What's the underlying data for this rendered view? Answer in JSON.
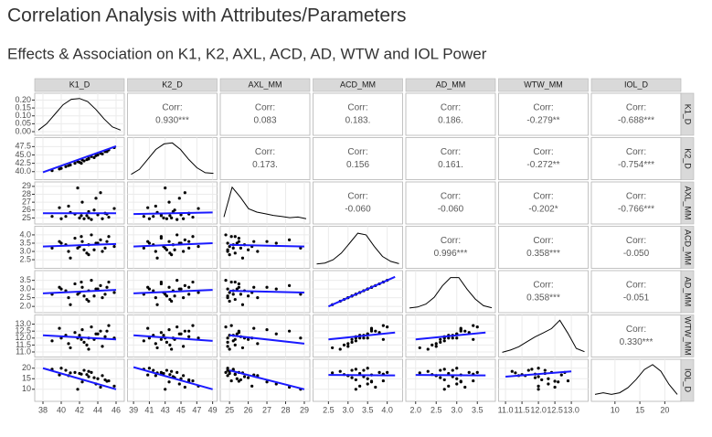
{
  "chart_data": {
    "type": "pairs",
    "title": "Correlation Analysis with Attributes/Parameters",
    "subtitle": "Effects & Association on K1, K2, AXL, ACD, AD, WTW and IOL Power",
    "corr_label": "Corr:",
    "point_color": "#000000",
    "fit_color": "#1a1aff",
    "density_color": "#000000",
    "grid": true,
    "density_ylim": [
      0,
      0.22
    ],
    "density_yticks": [
      {
        "value": 0,
        "label": "0.00"
      },
      0.05,
      {
        "value": 0.1,
        "label": "0.10"
      },
      0.15,
      {
        "value": 0.2,
        "label": "0.20"
      }
    ],
    "variables": [
      {
        "name": "K1_D",
        "lim": [
          37.5,
          46.5
        ],
        "xticks": [
          38,
          40,
          42,
          44,
          46
        ],
        "yticks": [],
        "density": [
          0.01,
          0.05,
          0.11,
          0.17,
          0.205,
          0.21,
          0.19,
          0.14,
          0.08,
          0.03,
          0.01
        ]
      },
      {
        "name": "K2_D",
        "lim": [
          38.7,
          49.1
        ],
        "xticks": [
          39,
          41,
          43,
          45,
          47,
          49
        ],
        "yticks": [
          {
            "value": 40,
            "label": "40.0"
          },
          42.5,
          {
            "value": 45,
            "label": "45.0"
          },
          47.5
        ],
        "density": [
          0.05,
          0.2,
          0.5,
          0.8,
          0.97,
          1.0,
          0.8,
          0.5,
          0.25,
          0.1,
          0.08
        ]
      },
      {
        "name": "AXL_MM",
        "lim": [
          24.7,
          29.1
        ],
        "xticks": [
          25,
          26,
          27,
          28,
          29
        ],
        "yticks": [
          25,
          26,
          27,
          28,
          29
        ],
        "density": [
          0.1,
          1.0,
          0.7,
          0.35,
          0.25,
          0.2,
          0.15,
          0.12,
          0.08,
          0.1,
          0.05
        ]
      },
      {
        "name": "ACD_MM",
        "lim": [
          2.2,
          4.3
        ],
        "xticks": [
          2.5,
          {
            "value": 3,
            "label": "3.0"
          },
          3.5,
          {
            "value": 4,
            "label": "4.0"
          }
        ],
        "yticks": [
          2.5,
          {
            "value": 3,
            "label": "3.0"
          },
          3.5,
          {
            "value": 4,
            "label": "4.0"
          }
        ],
        "density": [
          0.02,
          0.05,
          0.15,
          0.35,
          0.65,
          0.95,
          0.9,
          0.55,
          0.25,
          0.1,
          0.03
        ]
      },
      {
        "name": "AD_MM",
        "lim": [
          1.85,
          3.85
        ],
        "xticks": [
          {
            "value": 2,
            "label": "2.0"
          },
          2.5,
          {
            "value": 3,
            "label": "3.0"
          },
          3.5
        ],
        "yticks": [
          {
            "value": 2,
            "label": "2.0"
          },
          2.5,
          {
            "value": 3,
            "label": "3.0"
          },
          3.5
        ],
        "density": [
          0.03,
          0.06,
          0.15,
          0.35,
          0.7,
          0.95,
          0.95,
          0.6,
          0.3,
          0.1,
          0.04
        ]
      },
      {
        "name": "WTW_MM",
        "lim": [
          10.9,
          13.4
        ],
        "xticks": [
          {
            "value": 11,
            "label": "11.0"
          },
          11.5,
          {
            "value": 12,
            "label": "12.0"
          },
          12.5,
          {
            "value": 13,
            "label": "13.0"
          }
        ],
        "yticks": [
          {
            "value": 11,
            "label": "11.0"
          },
          11.5,
          {
            "value": 12,
            "label": "12.0"
          },
          12.5,
          {
            "value": 13,
            "label": "13.0"
          }
        ],
        "density": [
          0.03,
          0.1,
          0.2,
          0.35,
          0.5,
          0.62,
          0.75,
          1.0,
          0.6,
          0.15,
          0.05
        ]
      },
      {
        "name": "IOL_D",
        "lim": [
          6,
          22.5
        ],
        "xticks": [
          10,
          15,
          20
        ],
        "yticks": [
          10,
          15,
          20
        ],
        "density": [
          0.1,
          0.15,
          0.1,
          0.15,
          0.3,
          0.55,
          0.85,
          1.0,
          0.8,
          0.4,
          0.1
        ]
      }
    ],
    "observations": [
      [
        39.0,
        40.3,
        25.2,
        3.2,
        2.7,
        11.8,
        19.5
      ],
      [
        40.0,
        41.0,
        24.9,
        3.5,
        3.0,
        12.0,
        20.0
      ],
      [
        40.8,
        41.8,
        26.5,
        3.0,
        2.5,
        11.6,
        16.5
      ],
      [
        41.5,
        42.5,
        25.5,
        3.8,
        3.3,
        12.4,
        18.0
      ],
      [
        42.0,
        42.8,
        25.0,
        3.3,
        2.8,
        12.2,
        17.5
      ],
      [
        42.3,
        43.5,
        27.0,
        3.6,
        3.1,
        12.6,
        13.5
      ],
      [
        42.8,
        43.6,
        25.3,
        2.9,
        2.4,
        11.5,
        17.0
      ],
      [
        43.0,
        44.0,
        25.8,
        3.4,
        2.9,
        12.0,
        16.0
      ],
      [
        43.3,
        44.5,
        24.8,
        4.0,
        3.5,
        12.8,
        18.0
      ],
      [
        43.6,
        44.2,
        26.0,
        3.1,
        2.6,
        11.9,
        15.5
      ],
      [
        44.0,
        45.0,
        25.4,
        3.5,
        3.0,
        12.3,
        15.0
      ],
      [
        44.3,
        45.5,
        28.2,
        3.7,
        3.2,
        12.5,
        11.0
      ],
      [
        44.8,
        46.0,
        25.6,
        3.2,
        2.7,
        12.1,
        14.5
      ],
      [
        45.2,
        46.5,
        25.1,
        3.9,
        3.4,
        12.9,
        14.0
      ],
      [
        45.8,
        47.2,
        26.2,
        3.3,
        2.8,
        12.0,
        11.5
      ],
      [
        41.0,
        42.0,
        25.7,
        2.6,
        2.1,
        11.3,
        17.8
      ],
      [
        42.5,
        43.2,
        24.9,
        3.1,
        2.6,
        11.7,
        19.0
      ],
      [
        43.8,
        44.8,
        27.5,
        3.5,
        3.0,
        12.3,
        12.5
      ],
      [
        40.5,
        41.5,
        25.2,
        3.4,
        2.9,
        12.2,
        19.0
      ],
      [
        44.5,
        45.3,
        24.9,
        3.0,
        2.5,
        11.4,
        16.5
      ],
      [
        39.8,
        40.8,
        26.3,
        3.6,
        3.1,
        12.7,
        16.8
      ],
      [
        43.0,
        43.8,
        25.0,
        2.8,
        2.3,
        11.2,
        18.5
      ],
      [
        41.8,
        43.0,
        28.8,
        3.2,
        2.7,
        12.0,
        10.0
      ],
      [
        45.0,
        46.0,
        25.5,
        3.6,
        3.1,
        12.5,
        13.8
      ],
      [
        42.2,
        42.5,
        25.3,
        3.9,
        3.4,
        11.9,
        17.2
      ]
    ],
    "fits": [
      {
        "row": 1,
        "col": 0,
        "x": [
          38,
          46
        ],
        "y": [
          39.8,
          47.6
        ]
      },
      {
        "row": 2,
        "col": 0,
        "x": [
          38,
          46
        ],
        "y": [
          25.6,
          25.6
        ]
      },
      {
        "row": 2,
        "col": 1,
        "x": [
          39,
          49
        ],
        "y": [
          25.5,
          25.7
        ]
      },
      {
        "row": 3,
        "col": 0,
        "x": [
          38,
          46
        ],
        "y": [
          3.3,
          3.45
        ]
      },
      {
        "row": 3,
        "col": 1,
        "x": [
          39,
          49
        ],
        "y": [
          3.3,
          3.5
        ]
      },
      {
        "row": 3,
        "col": 2,
        "x": [
          25,
          29
        ],
        "y": [
          3.4,
          3.3
        ]
      },
      {
        "row": 4,
        "col": 0,
        "x": [
          38,
          46
        ],
        "y": [
          2.75,
          2.95
        ]
      },
      {
        "row": 4,
        "col": 1,
        "x": [
          39,
          49
        ],
        "y": [
          2.75,
          2.95
        ]
      },
      {
        "row": 4,
        "col": 2,
        "x": [
          25,
          29
        ],
        "y": [
          2.9,
          2.8
        ]
      },
      {
        "row": 4,
        "col": 3,
        "x": [
          2.5,
          4.2
        ],
        "y": [
          2.0,
          3.7
        ]
      },
      {
        "row": 5,
        "col": 0,
        "x": [
          38,
          46
        ],
        "y": [
          12.2,
          11.9
        ]
      },
      {
        "row": 5,
        "col": 1,
        "x": [
          39,
          49
        ],
        "y": [
          12.2,
          11.8
        ]
      },
      {
        "row": 5,
        "col": 2,
        "x": [
          25,
          29
        ],
        "y": [
          12.2,
          11.6
        ]
      },
      {
        "row": 5,
        "col": 3,
        "x": [
          2.5,
          4.2
        ],
        "y": [
          11.9,
          12.4
        ]
      },
      {
        "row": 5,
        "col": 4,
        "x": [
          2.0,
          3.7
        ],
        "y": [
          11.9,
          12.4
        ]
      },
      {
        "row": 6,
        "col": 0,
        "x": [
          38,
          46
        ],
        "y": [
          20,
          10
        ]
      },
      {
        "row": 6,
        "col": 1,
        "x": [
          39,
          49
        ],
        "y": [
          20.5,
          10
        ]
      },
      {
        "row": 6,
        "col": 2,
        "x": [
          25,
          29
        ],
        "y": [
          19,
          10
        ]
      },
      {
        "row": 6,
        "col": 3,
        "x": [
          2.5,
          4.2
        ],
        "y": [
          16.8,
          16.6
        ]
      },
      {
        "row": 6,
        "col": 4,
        "x": [
          2.0,
          3.7
        ],
        "y": [
          16.8,
          16.6
        ]
      },
      {
        "row": 6,
        "col": 5,
        "x": [
          11,
          13
        ],
        "y": [
          16,
          18.5
        ]
      }
    ],
    "correlations": [
      {
        "row": 0,
        "col": 1,
        "value": 0.93,
        "label": "0.930***"
      },
      {
        "row": 0,
        "col": 2,
        "value": 0.083,
        "label": "0.083"
      },
      {
        "row": 0,
        "col": 3,
        "value": 0.183,
        "label": "0.183."
      },
      {
        "row": 0,
        "col": 4,
        "value": 0.186,
        "label": "0.186."
      },
      {
        "row": 0,
        "col": 5,
        "value": -0.279,
        "label": "-0.279**"
      },
      {
        "row": 0,
        "col": 6,
        "value": -0.688,
        "label": "-0.688***"
      },
      {
        "row": 1,
        "col": 2,
        "value": 0.173,
        "label": "0.173."
      },
      {
        "row": 1,
        "col": 3,
        "value": 0.156,
        "label": "0.156"
      },
      {
        "row": 1,
        "col": 4,
        "value": 0.161,
        "label": "0.161."
      },
      {
        "row": 1,
        "col": 5,
        "value": -0.272,
        "label": "-0.272**"
      },
      {
        "row": 1,
        "col": 6,
        "value": -0.754,
        "label": "-0.754***"
      },
      {
        "row": 2,
        "col": 3,
        "value": -0.06,
        "label": "-0.060"
      },
      {
        "row": 2,
        "col": 4,
        "value": -0.06,
        "label": "-0.060"
      },
      {
        "row": 2,
        "col": 5,
        "value": -0.202,
        "label": "-0.202*"
      },
      {
        "row": 2,
        "col": 6,
        "value": -0.766,
        "label": "-0.766***"
      },
      {
        "row": 3,
        "col": 4,
        "value": 0.996,
        "label": "0.996***"
      },
      {
        "row": 3,
        "col": 5,
        "value": 0.358,
        "label": "0.358***"
      },
      {
        "row": 3,
        "col": 6,
        "value": -0.05,
        "label": "-0.050"
      },
      {
        "row": 4,
        "col": 5,
        "value": 0.358,
        "label": "0.358***"
      },
      {
        "row": 4,
        "col": 6,
        "value": -0.051,
        "label": "-0.051"
      },
      {
        "row": 5,
        "col": 6,
        "value": 0.33,
        "label": "0.330***"
      }
    ]
  }
}
